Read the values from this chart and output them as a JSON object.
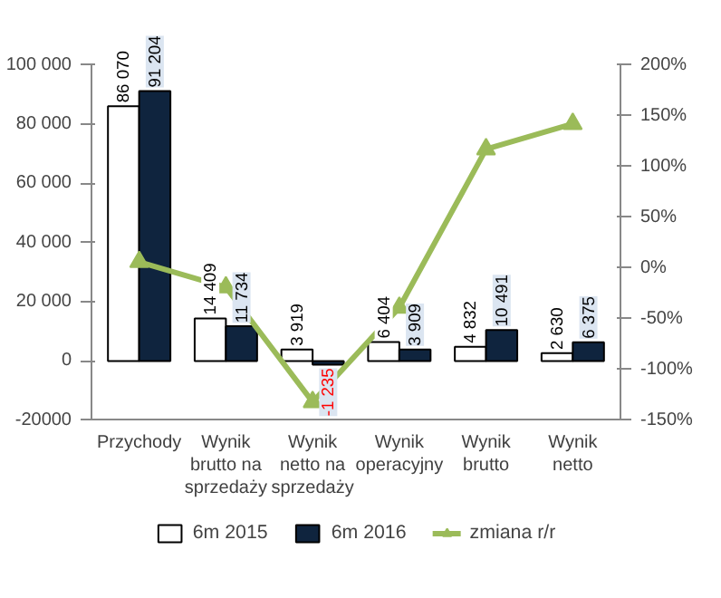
{
  "chart_data": {
    "type": "bar",
    "categories": [
      "Przychody",
      "Wynik brutto na sprzedaży",
      "Wynik netto na sprzedaży",
      "Wynik operacyjny",
      "Wynik brutto",
      "Wynik netto"
    ],
    "series": [
      {
        "name": "6m 2015",
        "color": "#ffffff",
        "values": [
          86070,
          14409,
          3919,
          6404,
          4832,
          2630
        ],
        "value_labels": [
          "86 070",
          "14 409",
          "3 919",
          "6 404",
          "4 832",
          "2 630"
        ]
      },
      {
        "name": "6m 2016",
        "color": "#0f243e",
        "values": [
          91204,
          11734,
          -1235,
          3909,
          10491,
          6375
        ],
        "value_labels": [
          "91 204",
          "11 734",
          "-1 235",
          "3 909",
          "10 491",
          "6 375"
        ]
      },
      {
        "name": "zmiana r/r",
        "type": "line",
        "axis": "y2",
        "color": "#9bbb59",
        "values": [
          6,
          -19,
          -132,
          -39,
          117,
          142
        ],
        "marker": "triangle"
      }
    ],
    "ylim": [
      -20000,
      100000
    ],
    "yticks": [
      {
        "value": -20000,
        "label": "-20000"
      },
      {
        "value": 0,
        "label": "0"
      },
      {
        "value": 20000,
        "label": "20 000"
      },
      {
        "value": 40000,
        "label": "40 000"
      },
      {
        "value": 60000,
        "label": "60 000"
      },
      {
        "value": 80000,
        "label": "80 000"
      },
      {
        "value": 100000,
        "label": "100 000"
      }
    ],
    "y2lim": [
      -150,
      200
    ],
    "y2ticks": [
      {
        "value": -150,
        "label": "-150%"
      },
      {
        "value": -100,
        "label": "-100%"
      },
      {
        "value": -50,
        "label": "-50%"
      },
      {
        "value": 0,
        "label": "0%"
      },
      {
        "value": 50,
        "label": "50%"
      },
      {
        "value": 100,
        "label": "100%"
      },
      {
        "value": 150,
        "label": "150%"
      },
      {
        "value": 200,
        "label": "200%"
      }
    ],
    "grid": false,
    "legend": "bottom"
  }
}
